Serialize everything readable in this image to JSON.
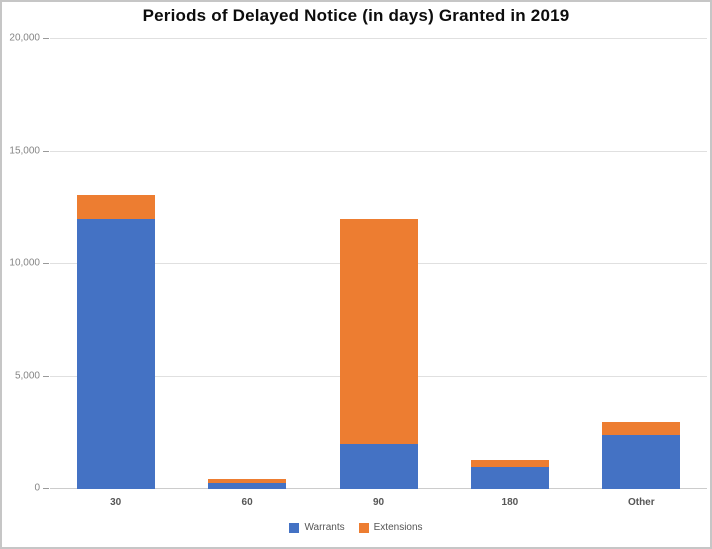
{
  "chart_data": {
    "type": "bar",
    "stacked": true,
    "title": "Periods of Delayed Notice (in days) Granted in 2019",
    "categories": [
      "30",
      "60",
      "90",
      "180",
      "Other"
    ],
    "series": [
      {
        "name": "Warrants",
        "color": "#4472C4",
        "values": [
          12000,
          250,
          2000,
          1000,
          2400
        ]
      },
      {
        "name": "Extensions",
        "color": "#ED7D31",
        "values": [
          1050,
          200,
          10000,
          300,
          600
        ]
      }
    ],
    "xlabel": "",
    "ylabel": "",
    "ylim": [
      0,
      20000
    ],
    "yticks": [
      {
        "value": 0,
        "label": "0"
      },
      {
        "value": 5000,
        "label": "5,000"
      },
      {
        "value": 10000,
        "label": "10,000"
      },
      {
        "value": 15000,
        "label": "15,000"
      },
      {
        "value": 20000,
        "label": "20,000"
      }
    ],
    "grid": true,
    "legend_position": "bottom"
  }
}
